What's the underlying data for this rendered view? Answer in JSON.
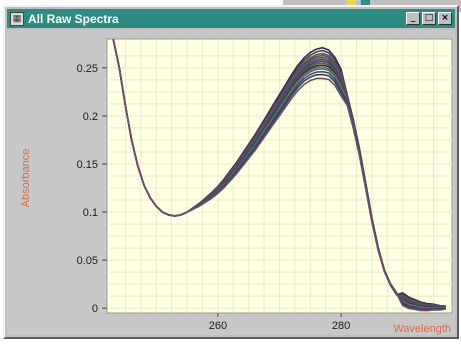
{
  "window": {
    "title": "All Raw Spectra"
  },
  "title_buttons": {
    "minimize": "_",
    "maximize": "□",
    "close": "×"
  },
  "colors": {
    "titlebar": "#2c8c83",
    "plot_bg": "#ffffe4",
    "axis_title": "#d8684a",
    "window_bg": "#c0c0c0"
  },
  "chart_data": {
    "type": "line",
    "xlabel": "Wavelength",
    "ylabel": "Absorbance",
    "xlim": [
      242,
      298
    ],
    "ylim": [
      -0.005,
      0.28
    ],
    "yticks": [
      0,
      0.05,
      0.1,
      0.15,
      0.2,
      0.25
    ],
    "ytick_labels": [
      "0",
      "0.05",
      "0.1",
      "0.15",
      "0.2",
      "0.25"
    ],
    "xticks": [
      260,
      280
    ],
    "xtick_labels": [
      "260",
      "280"
    ],
    "grid": true,
    "series_count": 14,
    "series_colors": [
      "#1d2f6b",
      "#7a2a2a",
      "#2b6e5e",
      "#4a4a8a",
      "#8a4a3a",
      "#235a8a",
      "#6a2f5f",
      "#3a6a3a",
      "#2a2a5a",
      "#9a5a4a",
      "#2f7f7a",
      "#5a3a7a",
      "#1f4f4f",
      "#7a4a6a"
    ],
    "x": [
      243,
      244,
      245,
      246,
      247,
      248,
      249,
      250,
      251,
      252,
      253,
      254,
      255,
      256,
      257,
      258,
      259,
      260,
      261,
      262,
      263,
      264,
      265,
      266,
      267,
      268,
      269,
      270,
      271,
      272,
      273,
      274,
      275,
      276,
      277,
      278,
      279,
      280,
      281,
      282,
      283,
      284,
      285,
      286,
      287,
      288,
      289,
      290,
      291,
      292,
      293,
      294,
      295,
      296,
      297
    ],
    "base_y": [
      0.28,
      0.25,
      0.21,
      0.175,
      0.148,
      0.128,
      0.115,
      0.106,
      0.1,
      0.097,
      0.096,
      0.097,
      0.1,
      0.104,
      0.108,
      0.113,
      0.118,
      0.124,
      0.131,
      0.139,
      0.147,
      0.156,
      0.165,
      0.174,
      0.184,
      0.194,
      0.204,
      0.214,
      0.224,
      0.234,
      0.243,
      0.25,
      0.255,
      0.258,
      0.259,
      0.257,
      0.25,
      0.238,
      0.22,
      0.195,
      0.165,
      0.13,
      0.095,
      0.065,
      0.042,
      0.027,
      0.017,
      0.011,
      0.007,
      0.005,
      0.003,
      0.002,
      0.002,
      0.001,
      0.001
    ],
    "peak_offsets": [
      0.012,
      0.009,
      0.006,
      0.004,
      0.002,
      0.0,
      -0.002,
      -0.004,
      -0.006,
      -0.008,
      -0.01,
      -0.013,
      -0.016,
      -0.02
    ]
  }
}
